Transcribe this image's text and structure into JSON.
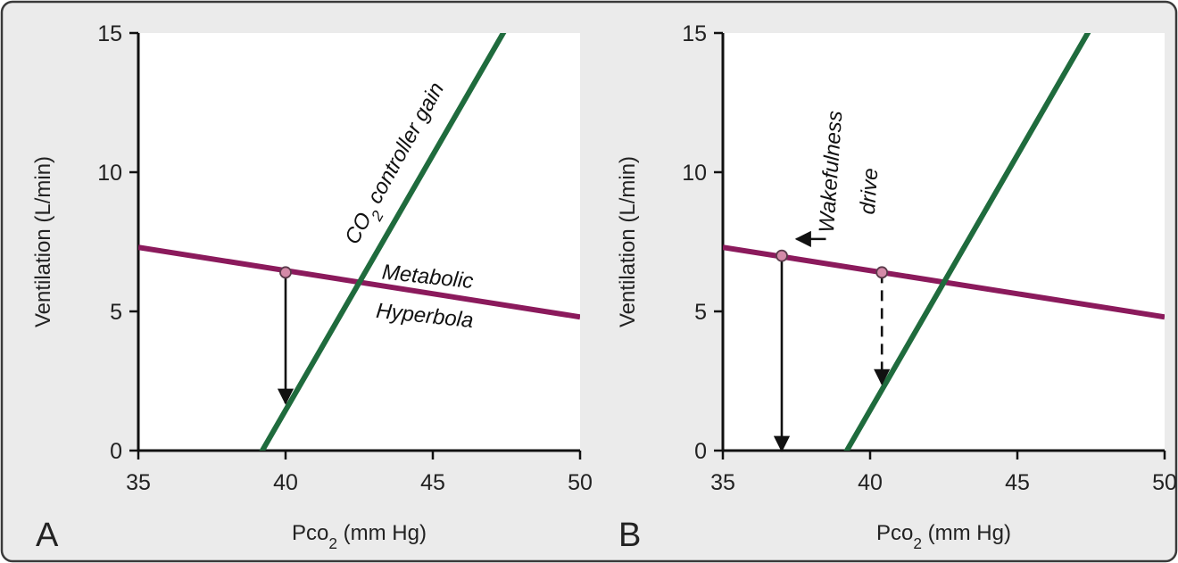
{
  "chart_data": [
    {
      "type": "line",
      "panel_label": "A",
      "xlabel": "Pco2 (mm Hg)",
      "ylabel": "Ventilation (L/min)",
      "xlim": [
        35,
        50
      ],
      "ylim": [
        0,
        15
      ],
      "xticks": [
        35,
        40,
        45,
        50
      ],
      "yticks": [
        0,
        5,
        10,
        15
      ],
      "grid": false,
      "series": [
        {
          "name": "Metabolic Hyperbola",
          "color": "#8b1a5c",
          "x": [
            35,
            50
          ],
          "y": [
            7.3,
            4.8
          ]
        },
        {
          "name": "CO2 controller gain",
          "color": "#1f6b3d",
          "x": [
            39.1,
            47.5
          ],
          "y": [
            -0.2,
            15.2
          ]
        }
      ],
      "annotations": [
        {
          "text": "CO2 controller gain",
          "x": 43.9,
          "y": 10.2
        },
        {
          "text": "Metabolic",
          "x": 44.8,
          "y": 6.0
        },
        {
          "text": "Hyperbola",
          "x": 44.7,
          "y": 4.6
        }
      ],
      "arrows": [
        {
          "x": 40,
          "y_from": 6.4,
          "y_to": 1.7,
          "style": "solid"
        }
      ],
      "markers": [
        {
          "x": 40,
          "y": 6.4
        }
      ]
    },
    {
      "type": "line",
      "panel_label": "B",
      "xlabel": "Pco2 (mm Hg)",
      "ylabel": "Ventilation (L/min)",
      "xlim": [
        35,
        50
      ],
      "ylim": [
        0,
        15
      ],
      "xticks": [
        35,
        40,
        45,
        50
      ],
      "yticks": [
        0,
        5,
        10,
        15
      ],
      "grid": false,
      "series": [
        {
          "name": "Metabolic Hyperbola",
          "color": "#8b1a5c",
          "x": [
            35,
            50
          ],
          "y": [
            7.3,
            4.8
          ]
        },
        {
          "name": "CO2 controller gain",
          "color": "#1f6b3d",
          "x": [
            39.1,
            47.5
          ],
          "y": [
            -0.2,
            15.2
          ]
        }
      ],
      "annotations": [
        {
          "text": "Wakefulness",
          "x": 38.9,
          "y": 10.0
        },
        {
          "text": "drive",
          "x": 40.2,
          "y": 9.3
        }
      ],
      "arrows": [
        {
          "x": 37,
          "y_from": 7.0,
          "y_to": 0,
          "style": "solid"
        },
        {
          "x": 40.4,
          "y_from": 6.4,
          "y_to": 2.4,
          "style": "dashed"
        },
        {
          "x_from": 38.5,
          "x_to": 37.5,
          "y": 7.6,
          "style": "solid"
        }
      ],
      "markers": [
        {
          "x": 37,
          "y": 7.0
        },
        {
          "x": 40.4,
          "y": 6.4
        }
      ]
    }
  ]
}
